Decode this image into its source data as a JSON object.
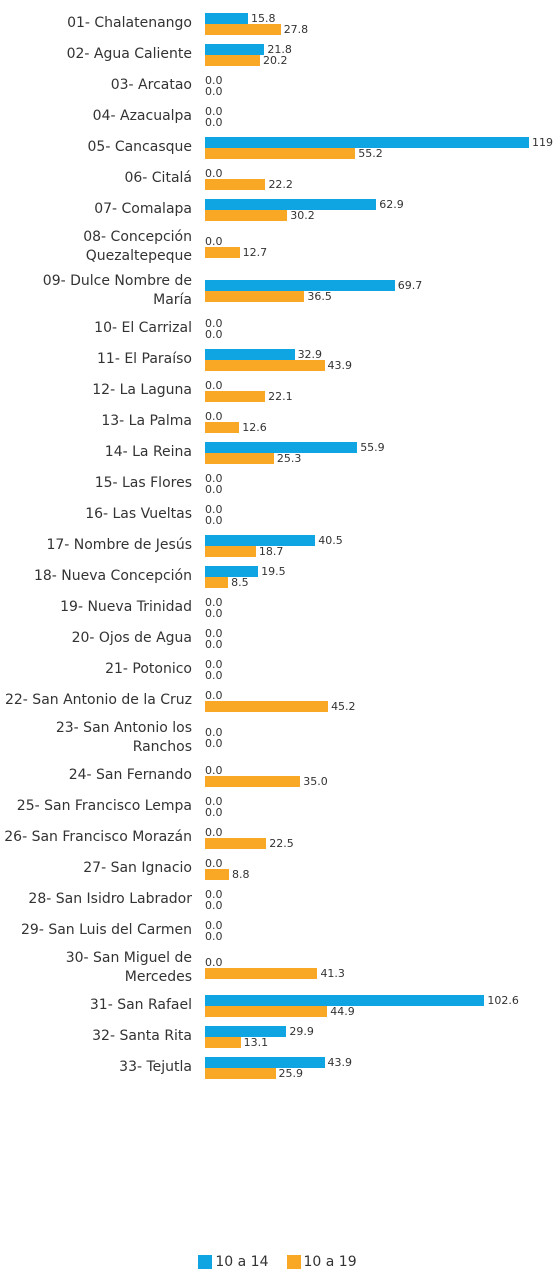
{
  "chart_data": {
    "type": "bar",
    "orientation": "horizontal",
    "categories": [
      "01- Chalatenango",
      "02- Agua Caliente",
      "03- Arcatao",
      "04- Azacualpa",
      "05- Cancasque",
      "06- Citalá",
      "07- Comalapa",
      "08- Concepción Quezaltepeque",
      "09- Dulce Nombre de María",
      "10- El Carrizal",
      "11- El Paraíso",
      "12- La Laguna",
      "13- La Palma",
      "14- La Reina",
      "15- Las Flores",
      "16- Las Vueltas",
      "17- Nombre de Jesús",
      "18- Nueva Concepción",
      "19- Nueva Trinidad",
      "20- Ojos de Agua",
      "21- Potonico",
      "22- San Antonio de la Cruz",
      "23- San Antonio los Ranchos",
      "24- San Fernando",
      "25- San Francisco Lempa",
      "26- San Francisco Morazán",
      "27- San Ignacio",
      "28- San Isidro Labrador",
      "29- San Luis del Carmen",
      "30- San Miguel de Mercedes",
      "31- San Rafael",
      "32- Santa Rita",
      "33- Tejutla"
    ],
    "series": [
      {
        "name": "10 a 14",
        "color": "#0ea5e2",
        "values": [
          15.8,
          21.8,
          0,
          0,
          119,
          0,
          62.9,
          0,
          69.7,
          0,
          32.9,
          0,
          0,
          55.9,
          0,
          0,
          40.5,
          19.5,
          0,
          0,
          0,
          0,
          0,
          0,
          0,
          0,
          0,
          0,
          0,
          0,
          102.6,
          29.9,
          43.9
        ],
        "value_labels": [
          "15.8",
          "21.8",
          "0.0",
          "0.0",
          "119",
          "0.0",
          "62.9",
          "0.0",
          "69.7",
          "0.0",
          "32.9",
          "0.0",
          "0.0",
          "55.9",
          "0.0",
          "0.0",
          "40.5",
          "19.5",
          "0.0",
          "0.0",
          "0.0",
          "0.0",
          "0.0",
          "0.0",
          "0.0",
          "0.0",
          "0.0",
          "0.0",
          "0.0",
          "0.0",
          "102.6",
          "29.9",
          "43.9"
        ]
      },
      {
        "name": "10 a 19",
        "color": "#f9a825",
        "values": [
          27.8,
          20.2,
          0,
          0,
          55.2,
          22.2,
          30.2,
          12.7,
          36.5,
          0,
          43.9,
          22.1,
          12.6,
          25.3,
          0,
          0,
          18.7,
          8.5,
          0,
          0,
          0,
          45.2,
          0,
          35,
          0,
          22.5,
          8.8,
          0,
          0,
          41.3,
          44.9,
          13.1,
          25.9
        ],
        "value_labels": [
          "27.8",
          "20.2",
          "0.0",
          "0.0",
          "55.2",
          "22.2",
          "30.2",
          "12.7",
          "36.5",
          "0.0",
          "43.9",
          "22.1",
          "12.6",
          "25.3",
          "0.0",
          "0.0",
          "18.7",
          "8.5",
          "0.0",
          "0.0",
          "0.0",
          "45.2",
          "0.0",
          "35.0",
          "0.0",
          "22.5",
          "8.8",
          "0.0",
          "0.0",
          "41.3",
          "44.9",
          "13.1",
          "25.9"
        ]
      }
    ],
    "legend": "bottom"
  }
}
